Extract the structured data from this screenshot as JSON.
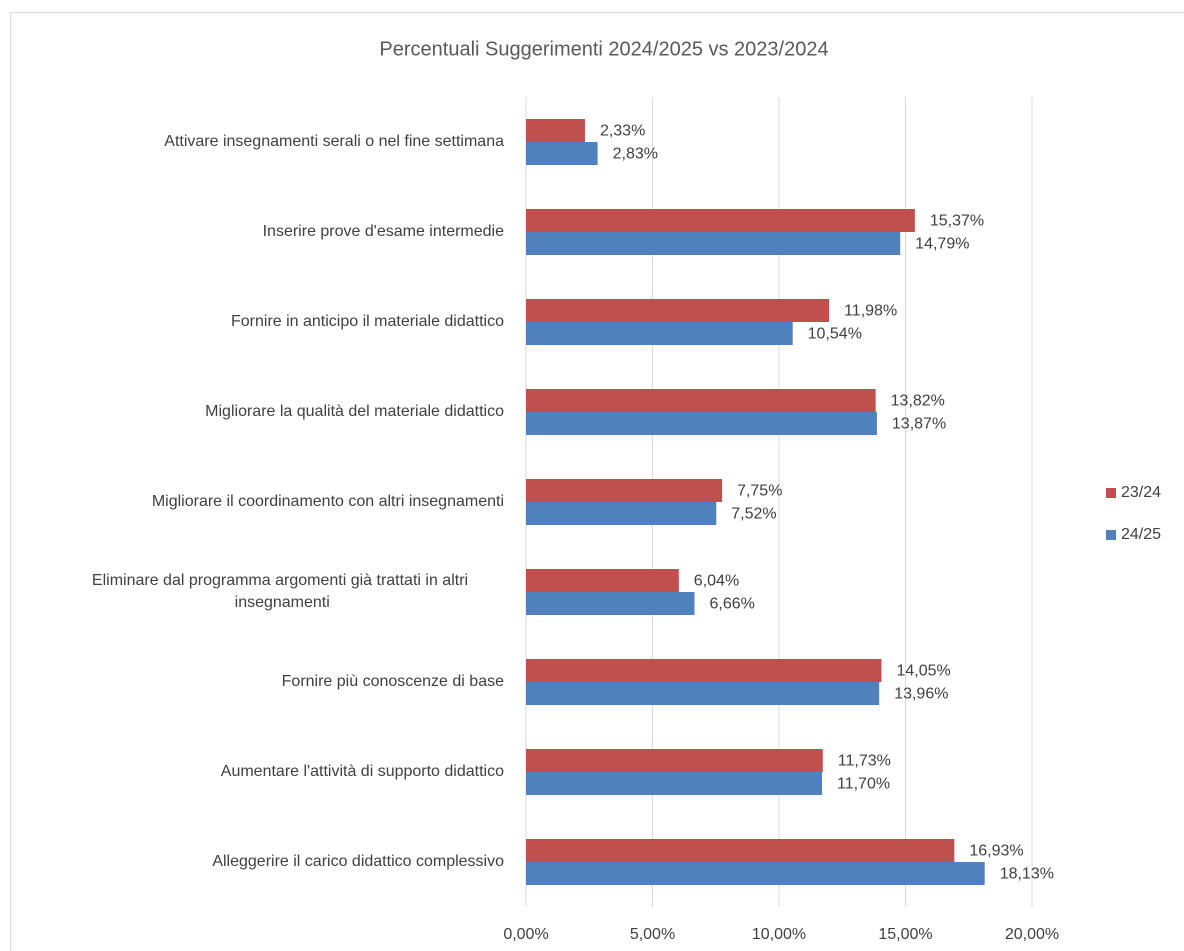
{
  "chart_data": {
    "type": "bar",
    "orientation": "horizontal",
    "title": "Percentuali Suggerimenti 2024/2025 vs 2023/2024",
    "categories": [
      "Attivare insegnamenti serali o nel fine settimana",
      "Inserire prove d'esame intermedie",
      "Fornire in anticipo il materiale didattico",
      "Migliorare la qualità del materiale didattico",
      "Migliorare il coordinamento con altri insegnamenti",
      "Eliminare dal programma argomenti già trattati in altri insegnamenti",
      "Fornire più conoscenze di base",
      "Aumentare l'attività di supporto didattico",
      "Alleggerire il carico didattico complessivo"
    ],
    "series": [
      {
        "name": "23/24",
        "color": "#c0504d",
        "values": [
          2.33,
          15.37,
          11.98,
          13.82,
          7.75,
          6.04,
          14.05,
          11.73,
          16.93
        ],
        "value_labels": [
          "2,33%",
          "15,37%",
          "11,98%",
          "13,82%",
          "7,75%",
          "6,04%",
          "14,05%",
          "11,73%",
          "16,93%"
        ]
      },
      {
        "name": "24/25",
        "color": "#4f81bd",
        "values": [
          2.83,
          14.79,
          10.54,
          13.87,
          7.52,
          6.66,
          13.96,
          11.7,
          18.13
        ],
        "value_labels": [
          "2,83%",
          "14,79%",
          "10,54%",
          "13,87%",
          "7,52%",
          "6,66%",
          "13,96%",
          "11,70%",
          "18,13%"
        ]
      }
    ],
    "xlim": [
      0,
      20
    ],
    "xticks": [
      {
        "value": 0,
        "label": "0,00%"
      },
      {
        "value": 5,
        "label": "5,00%"
      },
      {
        "value": 10,
        "label": "10,00%"
      },
      {
        "value": 15,
        "label": "15,00%"
      },
      {
        "value": 20,
        "label": "20,00%"
      }
    ],
    "grid": true,
    "legend": "right"
  }
}
